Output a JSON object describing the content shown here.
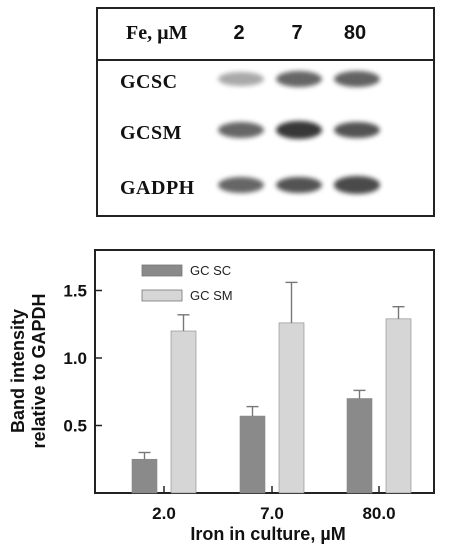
{
  "blot": {
    "header_label": "Fe, µM",
    "lanes": [
      "2",
      "7",
      "80"
    ],
    "rows": [
      {
        "label": "GCSC",
        "intensity": [
          0.35,
          0.7,
          0.72
        ]
      },
      {
        "label": "GCSM",
        "intensity": [
          0.7,
          0.95,
          0.8
        ]
      },
      {
        "label": "GADPH",
        "intensity": [
          0.7,
          0.8,
          0.85
        ]
      }
    ]
  },
  "chart_data": {
    "type": "bar",
    "categories": [
      "2.0",
      "7.0",
      "80.0"
    ],
    "series": [
      {
        "name": "GC SC",
        "values": [
          0.25,
          0.57,
          0.7
        ],
        "errors": [
          0.05,
          0.07,
          0.06
        ],
        "color": "#8a8a8a"
      },
      {
        "name": "GC SM",
        "values": [
          1.2,
          1.26,
          1.29
        ],
        "errors": [
          0.12,
          0.3,
          0.09
        ],
        "color": "#d6d6d6"
      }
    ],
    "ylabel_line1": "Band intensity",
    "ylabel_line2": "relative to GAPDH",
    "xlabel": "Iron in culture, µM",
    "yticks": [
      "0.5",
      "1.0",
      "1.5"
    ],
    "ylim": [
      0,
      1.8
    ],
    "legend_position": "top-left",
    "grid": false
  }
}
